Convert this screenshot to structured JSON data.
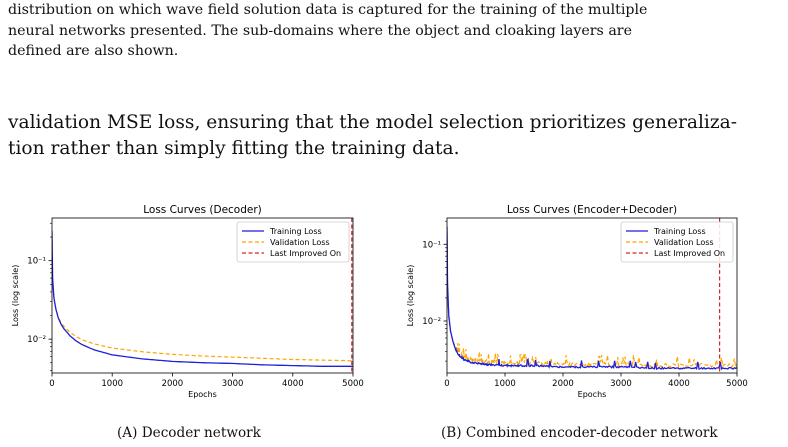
{
  "text": {
    "para1_lines": [
      "distribution on which wave field solution data is captured for the training of the multiple",
      "neural networks presented. The sub-domains where the object and cloaking layers are",
      "defined are also shown."
    ],
    "para2_lines": [
      "validation MSE loss, ensuring that the model selection prioritizes generaliza-",
      "tion rather than simply fitting the training data."
    ]
  },
  "captions": {
    "a": "(A) Decoder network",
    "b": "(B) Combined encoder-decoder network"
  },
  "colors": {
    "training": "#1f1fd6",
    "validation": "#ffa500",
    "last_improved": "#d62728"
  },
  "chart_data": [
    {
      "type": "line",
      "title": "Loss Curves (Decoder)",
      "xlabel": "Epochs",
      "ylabel": "Loss (log scale)",
      "yscale": "log",
      "xlim": [
        0,
        5000
      ],
      "ylim": [
        0.0037,
        0.35
      ],
      "xticks": [
        0,
        1000,
        2000,
        3000,
        4000,
        5000
      ],
      "ytick_labels": [
        "10⁻¹",
        "10⁻²"
      ],
      "grid": false,
      "legend_position": "top-right",
      "last_improved_epoch": 4980,
      "series": [
        {
          "name": "Training Loss",
          "style": "solid",
          "x": [
            0,
            10,
            30,
            60,
            100,
            150,
            200,
            300,
            400,
            500,
            700,
            1000,
            1500,
            2000,
            2500,
            3000,
            3500,
            4000,
            4500,
            5000
          ],
          "y": [
            0.24,
            0.06,
            0.035,
            0.025,
            0.019,
            0.0155,
            0.0135,
            0.011,
            0.0095,
            0.0085,
            0.0073,
            0.0063,
            0.0056,
            0.0052,
            0.005,
            0.0049,
            0.0047,
            0.0046,
            0.0045,
            0.0045
          ]
        },
        {
          "name": "Validation Loss",
          "style": "dashed",
          "x": [
            0,
            10,
            30,
            60,
            100,
            150,
            200,
            300,
            400,
            500,
            700,
            1000,
            1500,
            2000,
            2500,
            3000,
            3500,
            4000,
            4500,
            5000
          ],
          "y": [
            0.12,
            0.055,
            0.034,
            0.025,
            0.0195,
            0.016,
            0.0145,
            0.0122,
            0.0108,
            0.0098,
            0.0087,
            0.0077,
            0.0069,
            0.0064,
            0.0061,
            0.0059,
            0.0057,
            0.0055,
            0.0054,
            0.0053
          ]
        },
        {
          "name": "Last Improved On",
          "style": "dashed-vertical"
        }
      ]
    },
    {
      "type": "line",
      "title": "Loss Curves (Encoder+Decoder)",
      "xlabel": "Epochs",
      "ylabel": "Loss (log scale)",
      "yscale": "log",
      "xlim": [
        0,
        5000
      ],
      "ylim": [
        0.0021,
        0.22
      ],
      "xticks": [
        0,
        1000,
        2000,
        3000,
        4000,
        5000
      ],
      "ytick_labels": [
        "10⁻¹",
        "10⁻²"
      ],
      "grid": false,
      "legend_position": "top-right",
      "last_improved_epoch": 4700,
      "noisy": true,
      "series": [
        {
          "name": "Training Loss",
          "style": "solid",
          "x": [
            0,
            10,
            30,
            60,
            100,
            150,
            200,
            300,
            400,
            500,
            700,
            1000,
            1500,
            2000,
            2500,
            3000,
            3500,
            4000,
            4500,
            5000
          ],
          "y": [
            0.17,
            0.03,
            0.012,
            0.0075,
            0.0055,
            0.0042,
            0.0036,
            0.0031,
            0.0029,
            0.0028,
            0.0027,
            0.0026,
            0.0026,
            0.0025,
            0.0025,
            0.0025,
            0.0024,
            0.0024,
            0.0024,
            0.0024
          ]
        },
        {
          "name": "Validation Loss",
          "style": "dashed",
          "x": [
            0,
            10,
            30,
            60,
            100,
            150,
            200,
            300,
            400,
            500,
            700,
            1000,
            1500,
            2000,
            2500,
            3000,
            3500,
            4000,
            4500,
            5000
          ],
          "y": [
            0.12,
            0.025,
            0.011,
            0.0072,
            0.0055,
            0.0045,
            0.0039,
            0.0033,
            0.0031,
            0.003,
            0.0029,
            0.0028,
            0.0028,
            0.0027,
            0.0027,
            0.0027,
            0.0026,
            0.0026,
            0.0026,
            0.0026
          ]
        },
        {
          "name": "Last Improved On",
          "style": "dashed-vertical"
        }
      ]
    }
  ]
}
